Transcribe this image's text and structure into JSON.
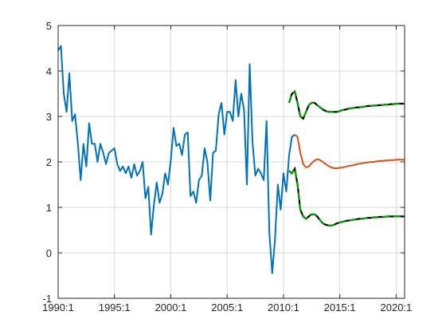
{
  "chart_data": {
    "type": "line",
    "title": "",
    "xlabel": "",
    "ylabel": "",
    "xlim": [
      1990.0,
      2020.75
    ],
    "ylim": [
      -1,
      5
    ],
    "grid": true,
    "x_tick_labels": [
      "1990:1",
      "1995:1",
      "2000:1",
      "2005:1",
      "2010:1",
      "2015:1",
      "2020:1"
    ],
    "x_tick_values": [
      1990,
      1995,
      2000,
      2005,
      2010,
      2015,
      2020
    ],
    "y_tick_labels": [
      "-1",
      "0",
      "1",
      "2",
      "3",
      "4",
      "5"
    ],
    "y_tick_values": [
      -1,
      0,
      1,
      2,
      3,
      4,
      5
    ],
    "colors": {
      "history": "#0072BD",
      "median": "#D95319",
      "band": "#00A000",
      "band_outline": "#000000",
      "grid": "#d9d9d9",
      "axes": "#262626"
    },
    "series": [
      {
        "key": "history",
        "style": "solid",
        "x": [
          1990.0,
          1990.25,
          1990.5,
          1990.75,
          1991.0,
          1991.25,
          1991.5,
          1991.75,
          1992.0,
          1992.25,
          1992.5,
          1992.75,
          1993.0,
          1993.25,
          1993.5,
          1993.75,
          1994.0,
          1994.25,
          1994.5,
          1994.75,
          1995.0,
          1995.25,
          1995.5,
          1995.75,
          1996.0,
          1996.25,
          1996.5,
          1996.75,
          1997.0,
          1997.25,
          1997.5,
          1997.75,
          1998.0,
          1998.25,
          1998.5,
          1998.75,
          1999.0,
          1999.25,
          1999.5,
          1999.75,
          2000.0,
          2000.25,
          2000.5,
          2000.75,
          2001.0,
          2001.25,
          2001.5,
          2001.75,
          2002.0,
          2002.25,
          2002.5,
          2002.75,
          2003.0,
          2003.25,
          2003.5,
          2003.75,
          2004.0,
          2004.25,
          2004.5,
          2004.75,
          2005.0,
          2005.25,
          2005.5,
          2005.75,
          2006.0,
          2006.25,
          2006.5,
          2006.75,
          2007.0,
          2007.25,
          2007.5,
          2007.75,
          2008.0,
          2008.25,
          2008.5,
          2008.75,
          2009.0,
          2009.25,
          2009.5,
          2009.75,
          2010.0,
          2010.25,
          2010.5,
          2010.75,
          2011.0
        ],
        "y": [
          4.45,
          4.55,
          3.5,
          3.1,
          3.95,
          2.9,
          3.05,
          2.4,
          1.6,
          2.4,
          1.9,
          2.85,
          2.4,
          2.4,
          2.0,
          2.4,
          2.2,
          1.95,
          2.2,
          2.25,
          2.3,
          1.95,
          1.8,
          1.9,
          1.75,
          1.9,
          1.65,
          1.95,
          1.7,
          1.8,
          2.0,
          1.2,
          1.45,
          0.4,
          1.05,
          1.55,
          1.1,
          1.3,
          1.75,
          1.5,
          2.05,
          2.75,
          2.35,
          2.4,
          2.15,
          2.6,
          2.65,
          1.25,
          1.35,
          1.1,
          1.6,
          1.7,
          2.3,
          2.0,
          1.15,
          2.2,
          2.25,
          3.05,
          3.3,
          2.6,
          3.1,
          3.1,
          2.9,
          3.8,
          3.0,
          3.5,
          3.15,
          1.5,
          4.15,
          2.45,
          1.7,
          1.85,
          1.75,
          1.6,
          2.9,
          0.45,
          -0.45,
          0.3,
          1.5,
          0.95,
          1.75,
          1.35,
          2.15,
          2.55,
          2.6
        ]
      },
      {
        "key": "median",
        "style": "solid",
        "x": [
          2011.0,
          2011.25,
          2011.5,
          2011.75,
          2012.0,
          2012.25,
          2012.5,
          2012.75,
          2013.0,
          2013.25,
          2013.5,
          2013.75,
          2014.0,
          2014.25,
          2014.5,
          2014.75,
          2015.0,
          2015.25,
          2015.5,
          2015.75,
          2016.0,
          2016.25,
          2016.5,
          2016.75,
          2017.0,
          2017.25,
          2017.5,
          2017.75,
          2018.0,
          2018.25,
          2018.5,
          2018.75,
          2019.0,
          2019.25,
          2019.5,
          2019.75,
          2020.0,
          2020.25,
          2020.5,
          2020.75
        ],
        "y": [
          2.6,
          2.55,
          2.2,
          1.95,
          1.88,
          1.9,
          1.97,
          2.03,
          2.06,
          2.04,
          2.0,
          1.95,
          1.91,
          1.88,
          1.86,
          1.86,
          1.87,
          1.88,
          1.89,
          1.91,
          1.92,
          1.93,
          1.95,
          1.96,
          1.97,
          1.98,
          1.99,
          2.0,
          2.0,
          2.01,
          2.02,
          2.02,
          2.03,
          2.03,
          2.04,
          2.04,
          2.05,
          2.05,
          2.05,
          2.05
        ]
      },
      {
        "key": "band",
        "style": "dashed",
        "x": [
          2010.5,
          2010.75,
          2011.0,
          2011.25,
          2011.5,
          2011.75,
          2012.0,
          2012.25,
          2012.5,
          2012.75,
          2013.0,
          2013.25,
          2013.5,
          2013.75,
          2014.0,
          2014.25,
          2014.5,
          2014.75,
          2015.0,
          2015.25,
          2015.5,
          2015.75,
          2016.0,
          2016.25,
          2016.5,
          2016.75,
          2017.0,
          2017.25,
          2017.5,
          2017.75,
          2018.0,
          2018.25,
          2018.5,
          2018.75,
          2019.0,
          2019.25,
          2019.5,
          2019.75,
          2020.0,
          2020.25,
          2020.5,
          2020.75
        ],
        "y": [
          3.3,
          3.5,
          3.55,
          3.3,
          3.0,
          2.95,
          3.1,
          3.25,
          3.3,
          3.3,
          3.25,
          3.2,
          3.15,
          3.12,
          3.1,
          3.1,
          3.1,
          3.1,
          3.12,
          3.14,
          3.15,
          3.17,
          3.18,
          3.19,
          3.2,
          3.2,
          3.21,
          3.22,
          3.23,
          3.23,
          3.24,
          3.24,
          3.25,
          3.25,
          3.26,
          3.26,
          3.27,
          3.27,
          3.28,
          3.28,
          3.28,
          3.28
        ]
      },
      {
        "key": "band",
        "style": "dashed",
        "x": [
          2010.5,
          2010.75,
          2011.0,
          2011.25,
          2011.5,
          2011.75,
          2012.0,
          2012.25,
          2012.5,
          2012.75,
          2013.0,
          2013.25,
          2013.5,
          2013.75,
          2014.0,
          2014.25,
          2014.5,
          2014.75,
          2015.0,
          2015.25,
          2015.5,
          2015.75,
          2016.0,
          2016.25,
          2016.5,
          2016.75,
          2017.0,
          2017.25,
          2017.5,
          2017.75,
          2018.0,
          2018.25,
          2018.5,
          2018.75,
          2019.0,
          2019.25,
          2019.5,
          2019.75,
          2020.0,
          2020.25,
          2020.5,
          2020.75
        ],
        "y": [
          1.8,
          1.75,
          1.85,
          1.5,
          0.95,
          0.8,
          0.75,
          0.8,
          0.85,
          0.85,
          0.8,
          0.72,
          0.65,
          0.62,
          0.6,
          0.6,
          0.62,
          0.65,
          0.67,
          0.68,
          0.7,
          0.71,
          0.72,
          0.73,
          0.74,
          0.75,
          0.75,
          0.76,
          0.77,
          0.77,
          0.78,
          0.78,
          0.79,
          0.79,
          0.79,
          0.8,
          0.8,
          0.8,
          0.8,
          0.8,
          0.8,
          0.8
        ]
      }
    ]
  }
}
